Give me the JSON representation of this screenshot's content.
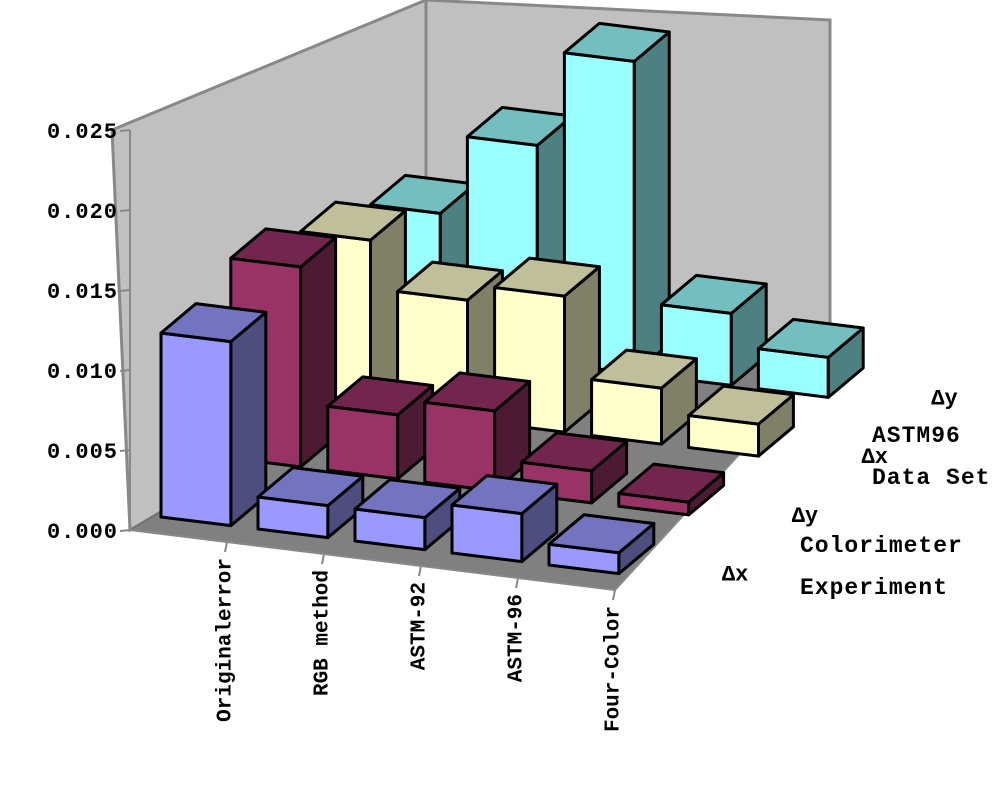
{
  "chart_data": {
    "type": "bar3d",
    "title": "",
    "ylim": [
      0,
      0.025
    ],
    "yticks": [
      "0.000",
      "0.005",
      "0.010",
      "0.015",
      "0.020",
      "0.025"
    ],
    "categories": [
      "Originalerror",
      "RGB method",
      "ASTM-92",
      "ASTM-96",
      "Four-Color"
    ],
    "series": [
      {
        "name": "Δx",
        "group": "Colorimeter Experiment",
        "color": "#9999ff",
        "values": [
          0.0115,
          0.002,
          0.002,
          0.003,
          0.0013
        ]
      },
      {
        "name": "Δy",
        "group": "Colorimeter Experiment",
        "color": "#993366",
        "values": [
          0.0125,
          0.004,
          0.005,
          0.002,
          0.0008
        ]
      },
      {
        "name": "Δx",
        "group": "ASTM96 Data Set",
        "color": "#ffffcc",
        "values": [
          0.0105,
          0.0075,
          0.0085,
          0.0035,
          0.002
        ]
      },
      {
        "name": "Δy",
        "group": "ASTM96 Data Set",
        "color": "#99ffff",
        "values": [
          0.0085,
          0.0135,
          0.0195,
          0.0045,
          0.0025
        ]
      }
    ],
    "group_labels": [
      {
        "line1": "ASTM96",
        "line2": "Data Set"
      },
      {
        "line1": "Colorimeter",
        "line2": "Experiment"
      }
    ]
  }
}
